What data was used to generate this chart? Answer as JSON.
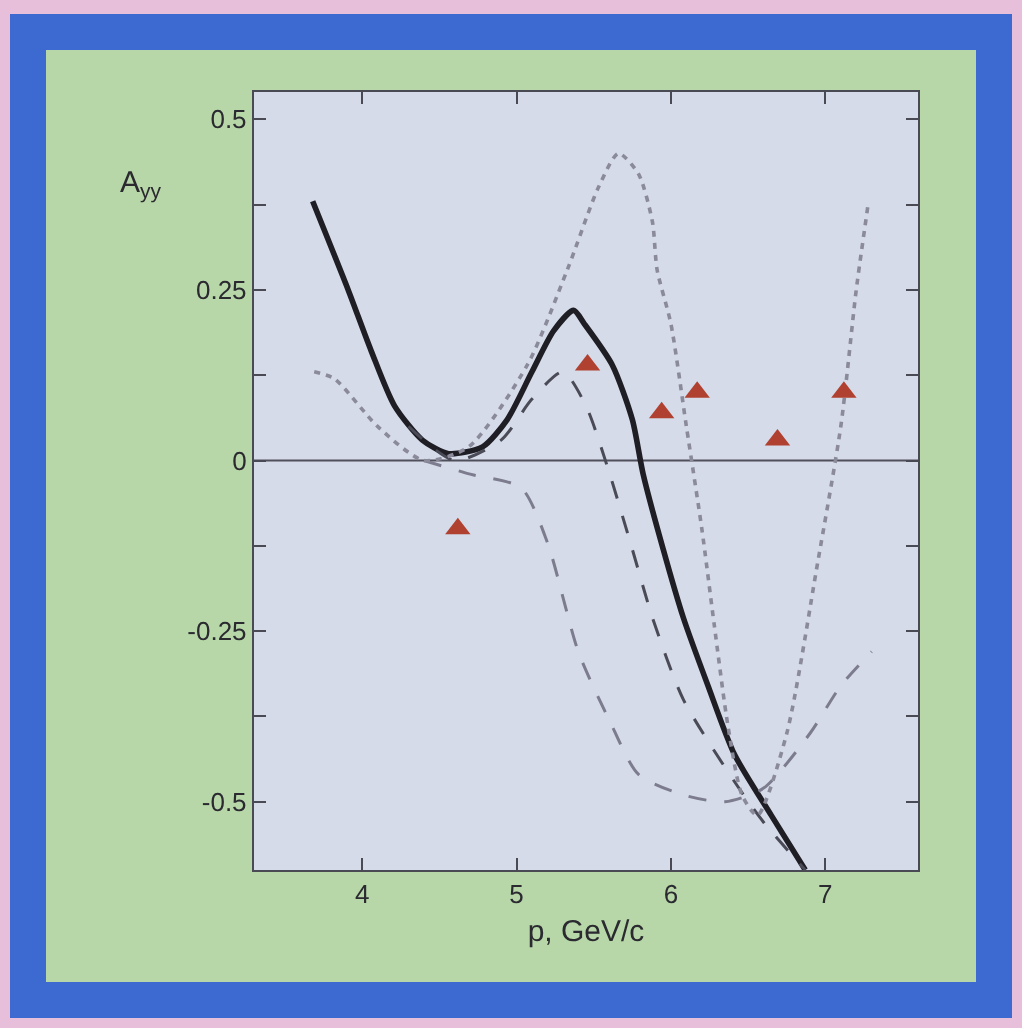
{
  "chart_data": {
    "type": "line",
    "xlabel": "p, GeV/c",
    "ylabel": "A$_{yy}$",
    "xlim": [
      3.3,
      7.6
    ],
    "xticks": [
      4,
      5,
      6,
      7
    ],
    "ylim": [
      -0.6,
      0.54
    ],
    "yticks": [
      -0.5,
      {
        "value": -0.375,
        "label": null
      },
      -0.25,
      {
        "value": -0.125,
        "label": null
      },
      0,
      {
        "value": 0.125,
        "label": null
      },
      0.25,
      {
        "value": 0.375,
        "label": null
      },
      0.5
    ],
    "ref_lines": [
      {
        "axis": "y",
        "value": 0,
        "color": "#50505a"
      }
    ],
    "series": [
      {
        "color": "#1e1e24",
        "line_style": "solid",
        "marker": "none",
        "x": [
          3.68,
          3.91,
          4.06,
          4.21,
          4.39,
          4.56,
          4.78,
          4.94,
          5.1,
          5.24,
          5.37,
          5.44,
          5.62,
          5.75,
          5.82,
          5.95,
          6.08,
          6.24,
          6.41,
          6.65,
          6.87
        ],
        "values": [
          0.38,
          0.25,
          0.16,
          0.08,
          0.03,
          0.01,
          0.02,
          0.06,
          0.13,
          0.19,
          0.22,
          0.2,
          0.14,
          0.06,
          -0.02,
          -0.13,
          -0.23,
          -0.33,
          -0.43,
          -0.52,
          -0.6
        ]
      },
      {
        "color": "#4b4b58",
        "line_style": "dashed",
        "marker": "none",
        "x": [
          4.3,
          4.6,
          4.9,
          5.1,
          5.3,
          5.45,
          5.59,
          5.75,
          5.88,
          6.08,
          6.41,
          6.6,
          6.87
        ],
        "values": [
          0.05,
          0.0,
          0.03,
          0.09,
          0.13,
          0.08,
          -0.01,
          -0.13,
          -0.23,
          -0.35,
          -0.47,
          -0.53,
          -0.6
        ]
      },
      {
        "color": "#7c7c8e",
        "line_style": "dashed",
        "marker": "none",
        "x": [
          4.4,
          4.7,
          5.03,
          5.2,
          5.4,
          5.6,
          5.79,
          6.08,
          6.35,
          6.6,
          6.9,
          7.1,
          7.3
        ],
        "values": [
          0.0,
          -0.02,
          -0.04,
          -0.12,
          -0.28,
          -0.38,
          -0.46,
          -0.49,
          -0.5,
          -0.48,
          -0.4,
          -0.33,
          -0.28
        ]
      },
      {
        "color": "#8a8a9a",
        "line_style": "dotted",
        "marker": "none",
        "x": [
          3.69,
          3.82,
          4.1,
          4.4,
          4.69,
          5.07,
          5.33,
          5.53,
          5.66,
          5.79,
          5.88,
          5.91,
          6.0,
          6.1,
          6.2,
          6.28,
          6.37,
          6.46,
          6.56,
          6.75,
          6.95,
          7.1,
          7.2,
          7.28
        ],
        "values": [
          0.13,
          0.12,
          0.05,
          0.0,
          0.02,
          0.14,
          0.28,
          0.4,
          0.45,
          0.42,
          0.35,
          0.28,
          0.2,
          0.05,
          -0.1,
          -0.24,
          -0.39,
          -0.49,
          -0.52,
          -0.4,
          -0.15,
          0.05,
          0.25,
          0.38
        ]
      },
      {
        "type": "scatter",
        "color": "#b0402f",
        "marker": "triangle",
        "x": [
          4.62,
          5.46,
          5.94,
          6.17,
          6.69,
          7.12
        ],
        "values": [
          -0.1,
          0.14,
          0.07,
          0.1,
          0.03,
          0.1
        ]
      }
    ]
  }
}
